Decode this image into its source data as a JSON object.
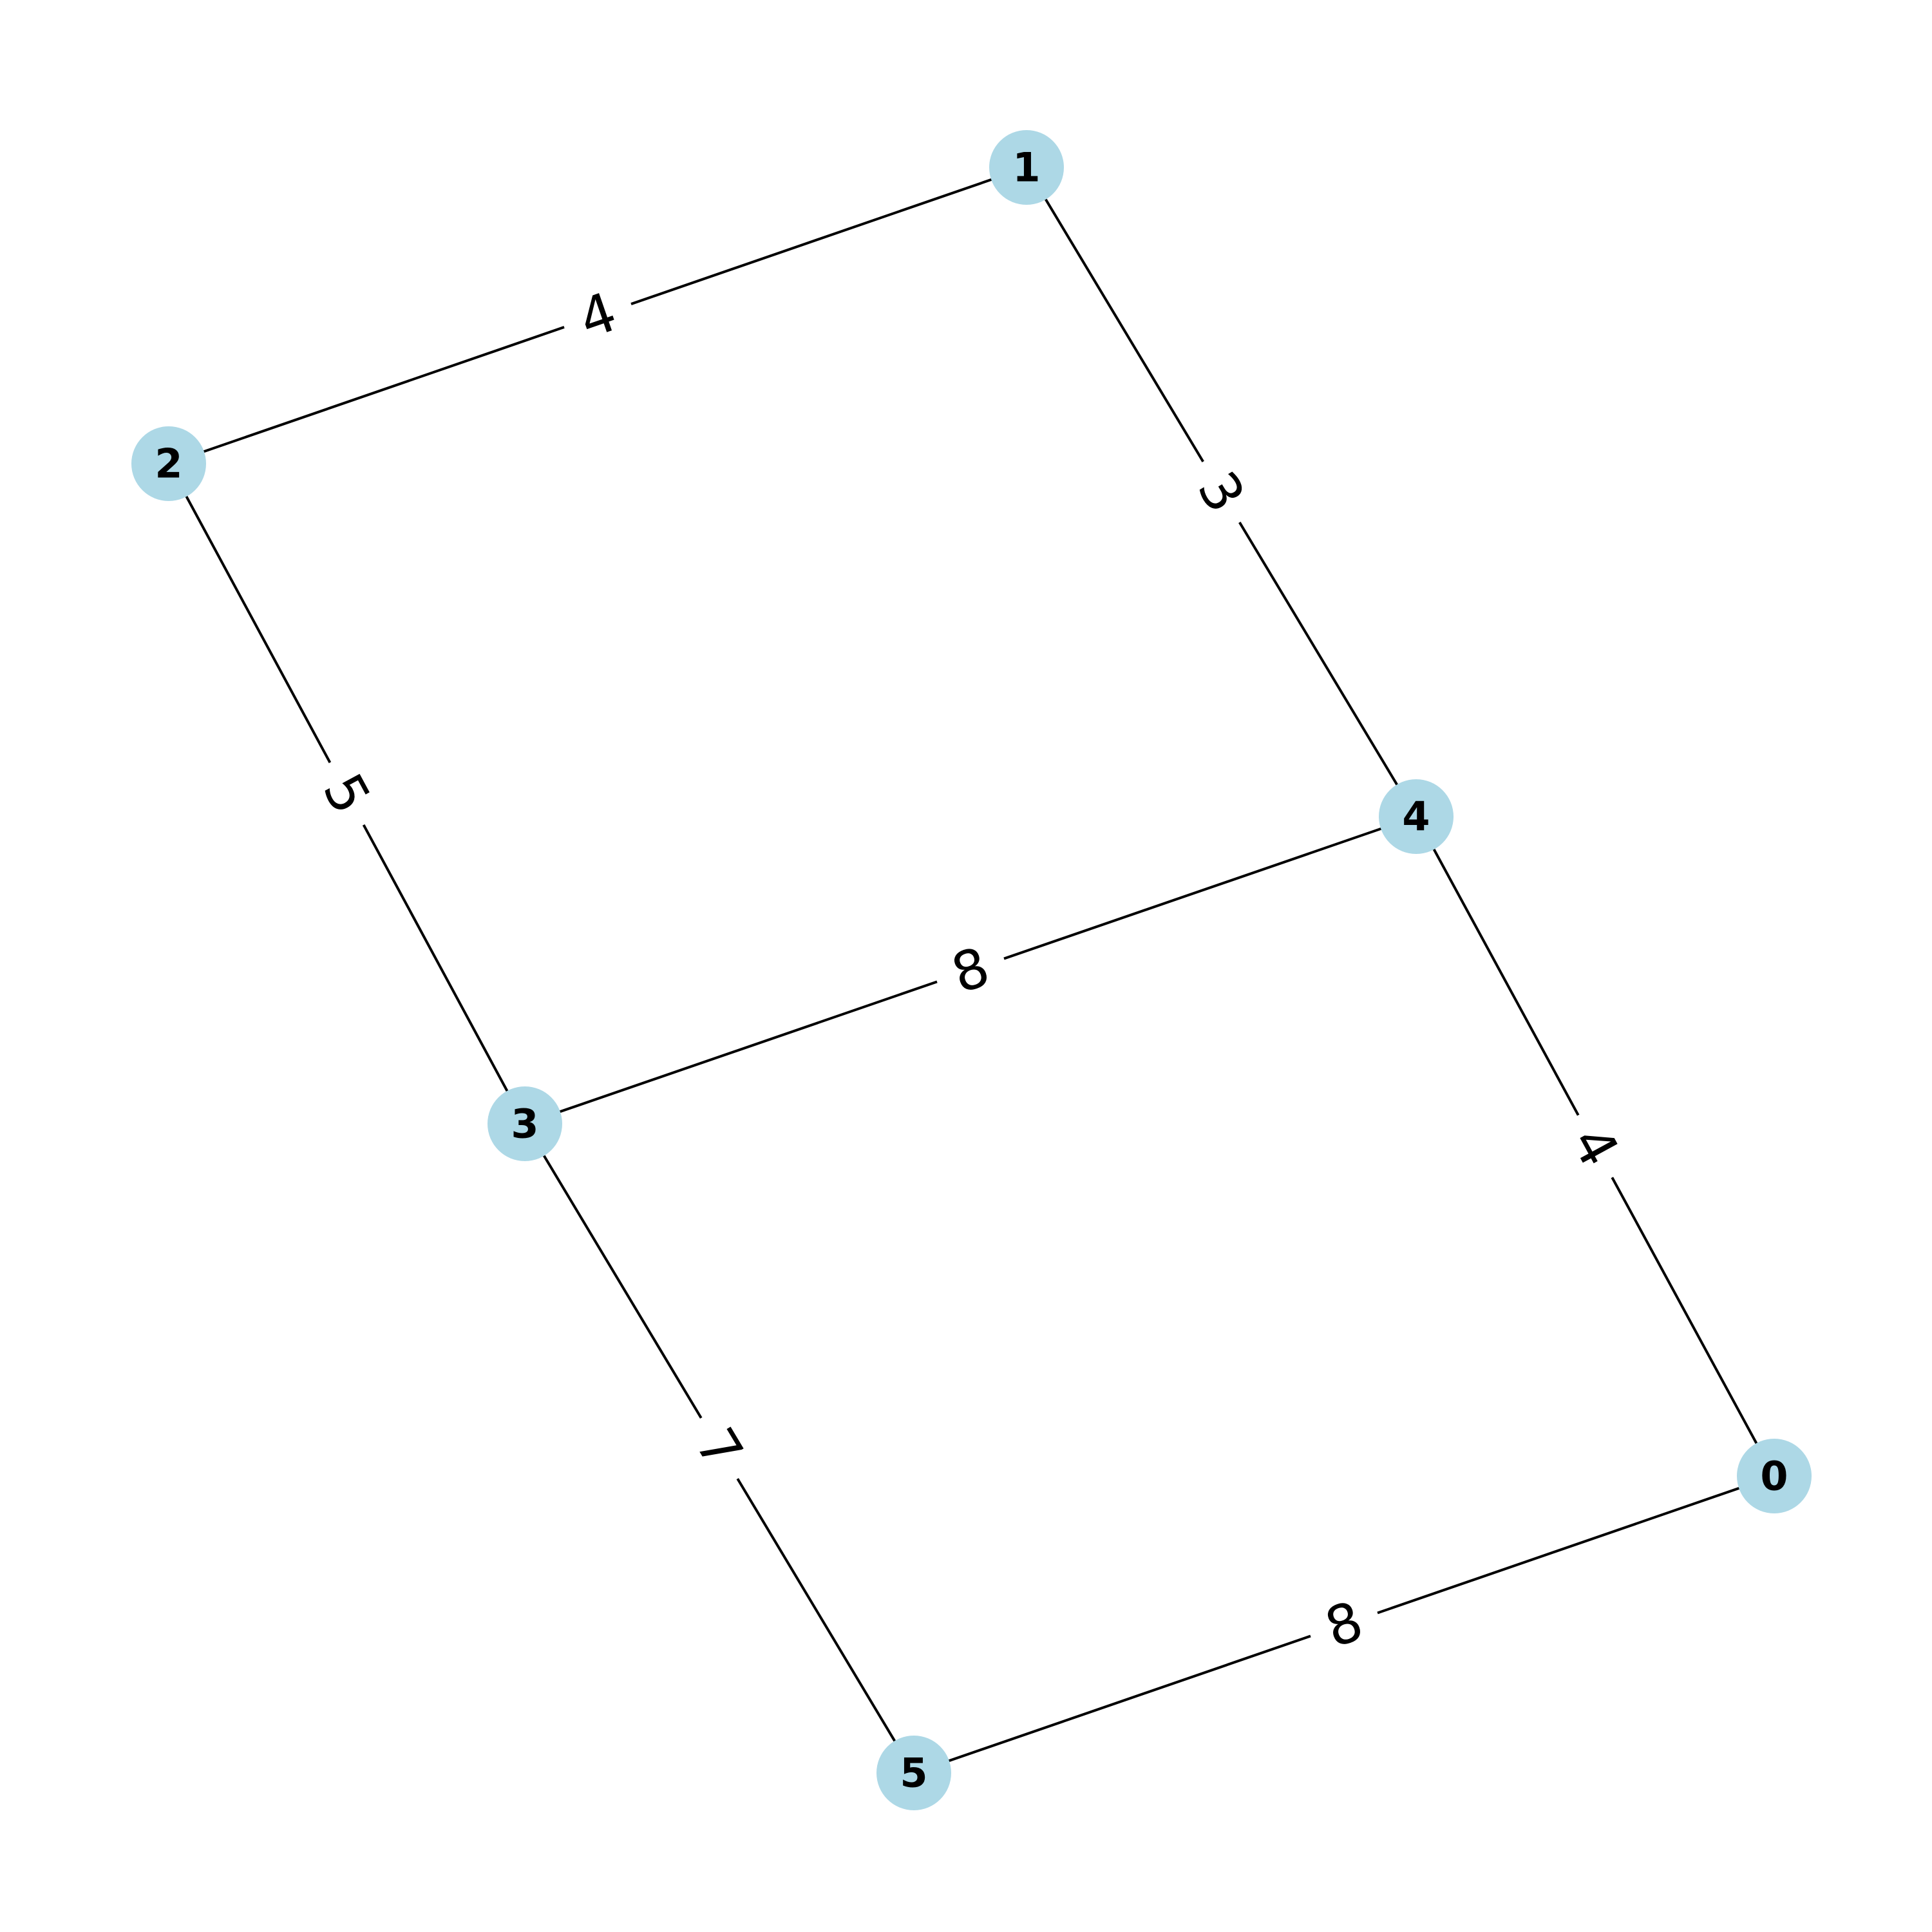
{
  "graph": {
    "colors": {
      "node_fill": "#add8e6",
      "edge": "#000000",
      "label": "#000000"
    },
    "nodes": [
      {
        "id": "0",
        "label": "0"
      },
      {
        "id": "1",
        "label": "1"
      },
      {
        "id": "2",
        "label": "2"
      },
      {
        "id": "3",
        "label": "3"
      },
      {
        "id": "4",
        "label": "4"
      },
      {
        "id": "5",
        "label": "5"
      }
    ],
    "edges": [
      {
        "source": "2",
        "target": "1",
        "weight": "4"
      },
      {
        "source": "1",
        "target": "4",
        "weight": "3"
      },
      {
        "source": "2",
        "target": "3",
        "weight": "5"
      },
      {
        "source": "3",
        "target": "4",
        "weight": "8"
      },
      {
        "source": "4",
        "target": "0",
        "weight": "4"
      },
      {
        "source": "3",
        "target": "5",
        "weight": "7"
      },
      {
        "source": "5",
        "target": "0",
        "weight": "8"
      }
    ]
  }
}
